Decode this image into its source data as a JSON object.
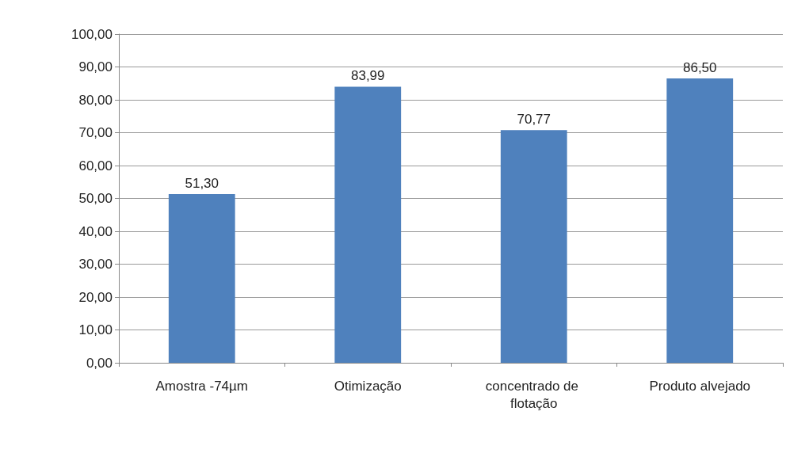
{
  "chart_data": {
    "type": "bar",
    "categories": [
      "Amostra -74µm",
      "Otimização",
      "concentrado de flotação",
      "Produto alvejado"
    ],
    "values": [
      51.3,
      83.99,
      70.77,
      86.5
    ],
    "value_labels": [
      "51,30",
      "83,99",
      "70,77",
      "86,50"
    ],
    "color": "#4f81bd",
    "ylim": [
      0,
      100
    ],
    "yticks": [
      {
        "value": 0,
        "label": "0,00"
      },
      {
        "value": 10,
        "label": "10,00"
      },
      {
        "value": 20,
        "label": "20,00"
      },
      {
        "value": 30,
        "label": "30,00"
      },
      {
        "value": 40,
        "label": "40,00"
      },
      {
        "value": 50,
        "label": "50,00"
      },
      {
        "value": 60,
        "label": "60,00"
      },
      {
        "value": 70,
        "label": "70,00"
      },
      {
        "value": 80,
        "label": "80,00"
      },
      {
        "value": 90,
        "label": "90,00"
      },
      {
        "value": 100,
        "label": "100,00"
      }
    ],
    "grid": "y"
  }
}
